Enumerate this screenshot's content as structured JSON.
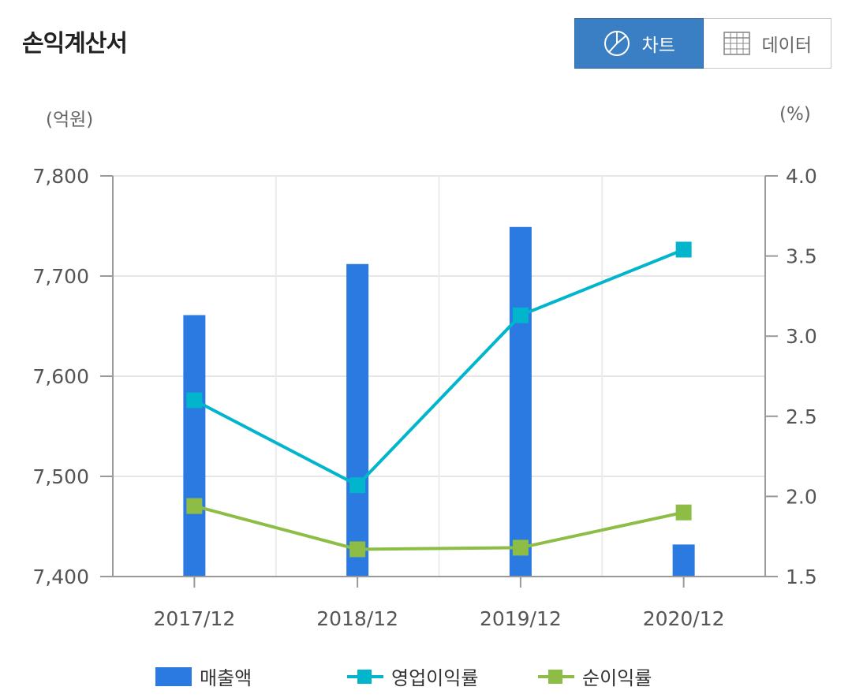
{
  "header": {
    "title": "손익계산서",
    "chart_tab_label": "차트",
    "data_tab_label": "데이터",
    "chart_tab_icon": "pie-chart-icon",
    "data_tab_icon": "table-grid-icon"
  },
  "colors": {
    "bar": "#2a7ae2",
    "operating": "#00b5cc",
    "net": "#8dbd45",
    "active_tab": "#3a7fc4"
  },
  "chart_data": {
    "type": "bar",
    "categories": [
      "2017/12",
      "2018/12",
      "2019/12",
      "2020/12"
    ],
    "y_left_unit": "(억원)",
    "y_right_unit": "(%)",
    "y_left_range": [
      7400,
      7800
    ],
    "y_left_ticks": [
      "7,800",
      "7,700",
      "7,600",
      "7,500",
      "7,400"
    ],
    "y_left_tick_values": [
      7800,
      7700,
      7600,
      7500,
      7400
    ],
    "y_right_range": [
      1.5,
      4.0
    ],
    "y_right_ticks": [
      "4.0",
      "3.5",
      "3.0",
      "2.5",
      "2.0",
      "1.5"
    ],
    "y_right_tick_values": [
      4.0,
      3.5,
      3.0,
      2.5,
      2.0,
      1.5
    ],
    "grid": true,
    "legend_position": "bottom",
    "series": [
      {
        "name": "매출액",
        "type": "bar",
        "axis": "left",
        "values": [
          7661,
          7712,
          7749,
          7432
        ]
      },
      {
        "name": "영업이익률",
        "type": "line",
        "axis": "right",
        "values": [
          2.6,
          2.07,
          3.13,
          3.54
        ]
      },
      {
        "name": "순이익률",
        "type": "line",
        "axis": "right",
        "values": [
          1.94,
          1.67,
          1.68,
          1.9
        ]
      }
    ]
  }
}
